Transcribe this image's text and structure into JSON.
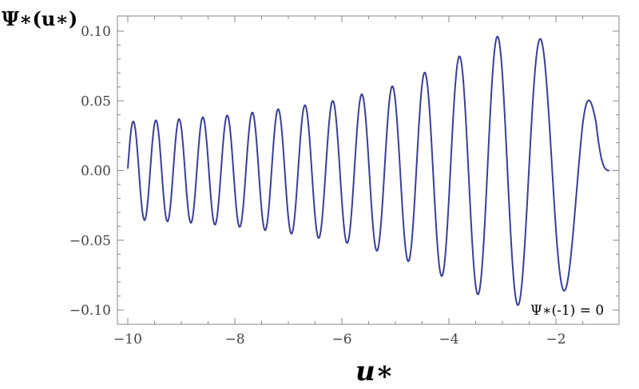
{
  "chart_data": {
    "type": "line",
    "xlabel": "u∗",
    "ylabel": "Ψ∗(u∗)",
    "annotation": "Ψ∗(-1) = 0",
    "xlim": [
      -10,
      -1
    ],
    "ylim": [
      -0.11,
      0.11
    ],
    "x_ticks": [
      -10,
      -8,
      -6,
      -4,
      -2
    ],
    "x_tick_labels": [
      "−10",
      "−8",
      "−6",
      "−4",
      "−2"
    ],
    "y_ticks": [
      0.1,
      0.05,
      0.0,
      -0.05,
      -0.1
    ],
    "y_tick_labels": [
      "0.10",
      "0.05",
      "0.00",
      "−0.05",
      "−0.10"
    ],
    "grid": false,
    "line_color": "#3b3e96",
    "series": [
      {
        "function": "Airy-like oscillation: Ψ∗(u∗) = A(u∗)·sin(φ(u∗)), amplitude A ≈ 0.052·(-u∗)^(-1/4) rising toward small |u∗|",
        "x_points": [
          -10,
          -9,
          -8,
          -7,
          -6,
          -5,
          -4,
          -3,
          -2,
          -1.5,
          -1
        ],
        "envelope_values": [
          0.035,
          0.037,
          0.04,
          0.045,
          0.051,
          0.061,
          0.078,
          0.098,
          0.093,
          0.072,
          0.0
        ],
        "end_value": 0.0
      }
    ]
  }
}
